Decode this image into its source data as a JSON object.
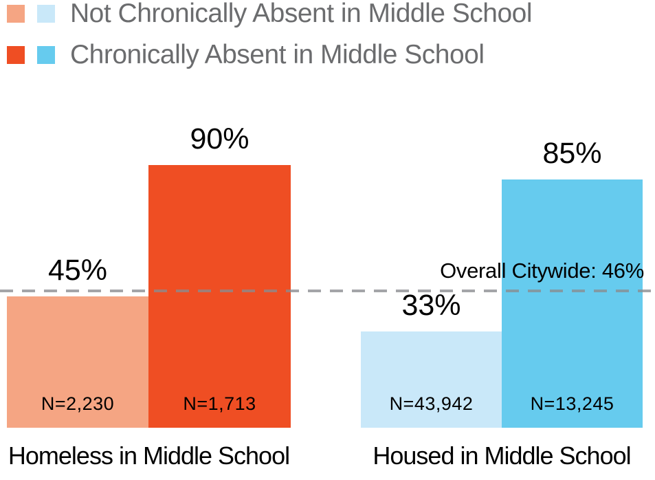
{
  "legend": {
    "items": [
      {
        "label": "Not Chronically Absent in Middle School",
        "swatch_colors": [
          "#F5A583",
          "#C9E8F9"
        ]
      },
      {
        "label": "Chronically Absent in Middle School",
        "swatch_colors": [
          "#EF4E23",
          "#66CBEE"
        ]
      }
    ],
    "text_color": "#6B6C6E"
  },
  "chart_data": {
    "type": "bar",
    "categories": [
      "Homeless in Middle School",
      "Housed in Middle School"
    ],
    "series": [
      {
        "name": "Not Chronically Absent in Middle School",
        "values": [
          45,
          33
        ]
      },
      {
        "name": "Chronically Absent in Middle School",
        "values": [
          90,
          85
        ]
      }
    ],
    "bars": [
      {
        "category": "Homeless in Middle School",
        "series": "Not Chronically Absent in Middle School",
        "value": 45,
        "pct_label": "45%",
        "n_label": "N=2,230",
        "color": "#F5A583"
      },
      {
        "category": "Homeless in Middle School",
        "series": "Chronically Absent in Middle School",
        "value": 90,
        "pct_label": "90%",
        "n_label": "N=1,713",
        "color": "#EF4E23"
      },
      {
        "category": "Housed in Middle School",
        "series": "Not Chronically Absent in Middle School",
        "value": 33,
        "pct_label": "33%",
        "n_label": "N=43,942",
        "color": "#C9E8F9"
      },
      {
        "category": "Housed in Middle School",
        "series": "Chronically Absent in Middle School",
        "value": 85,
        "pct_label": "85%",
        "n_label": "N=13,245",
        "color": "#66CBEE"
      }
    ],
    "reference_line": {
      "label": "Overall Citywide: 46%",
      "value": 46,
      "style": "dashed",
      "color": "#9A9CA0"
    },
    "ylim": [
      0,
      100
    ],
    "unit": "%",
    "grid": false,
    "legend_position": "top-left"
  }
}
